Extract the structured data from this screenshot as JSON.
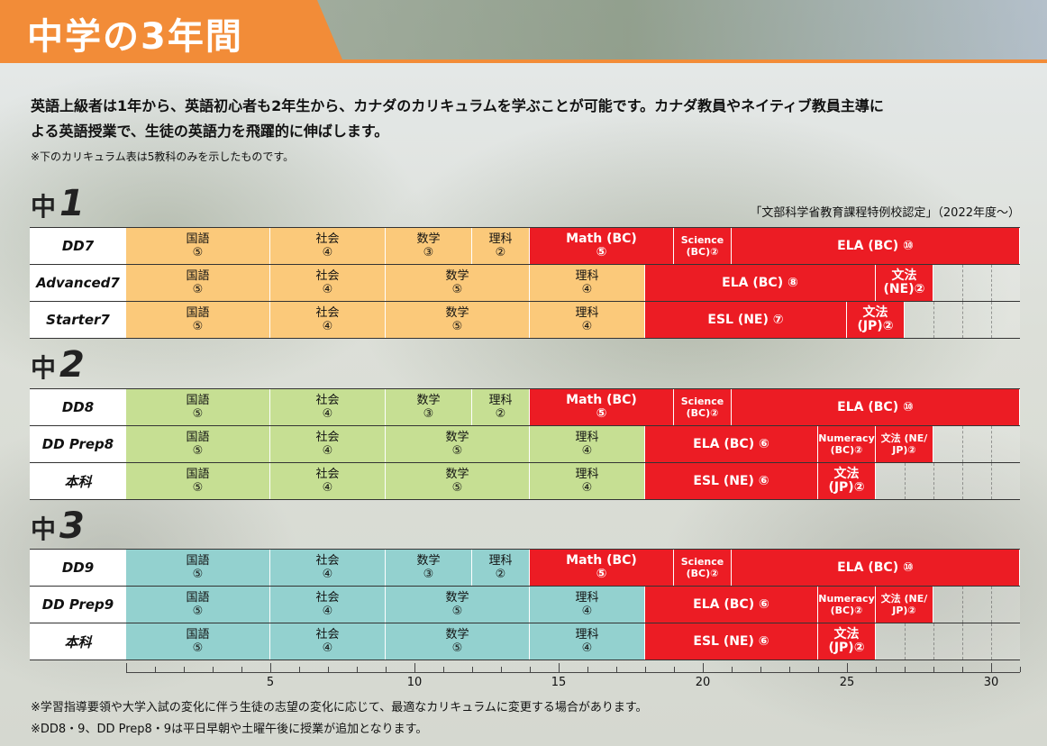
{
  "header": {
    "title": "中学の3年間"
  },
  "intro": {
    "line1": "英語上級者は1年から、英語初心者も2年生から、カナダのカリキュラムを学ぶことが可能です。カナダ教員やネイティブ教員主導に",
    "line2": "よる英語授業で、生徒の英語力を飛躍的に伸ばします。",
    "note": "※下のカリキュラム表は5教科のみを示したものです。"
  },
  "accreditation": "「文部科学省教育課程特例校認定」（2022年度〜）",
  "colors": {
    "orange": "#fbc97a",
    "green": "#c6df93",
    "teal": "#93d1cf",
    "red": "#ec1c24",
    "accent": "#f28c38"
  },
  "grades": [
    {
      "label": "中",
      "number": "1",
      "color": "orange",
      "rows": [
        {
          "name": "DD7",
          "cells": [
            {
              "l1": "国語",
              "l2": "⑤",
              "u": 5,
              "red": false
            },
            {
              "l1": "社会",
              "l2": "④",
              "u": 4,
              "red": false
            },
            {
              "l1": "数学",
              "l2": "③",
              "u": 3,
              "red": false
            },
            {
              "l1": "理科",
              "l2": "②",
              "u": 2,
              "red": false
            },
            {
              "l1": "Math (BC)",
              "l2": "⑤",
              "u": 5,
              "red": true
            },
            {
              "l1": "Science",
              "l2": "(BC)②",
              "u": 2,
              "red": true,
              "small": true
            },
            {
              "l1": "ELA (BC) ⑩",
              "l2": "",
              "u": 10,
              "red": true
            }
          ]
        },
        {
          "name": "Advanced7",
          "cells": [
            {
              "l1": "国語",
              "l2": "⑤",
              "u": 5,
              "red": false
            },
            {
              "l1": "社会",
              "l2": "④",
              "u": 4,
              "red": false
            },
            {
              "l1": "数学",
              "l2": "⑤",
              "u": 5,
              "red": false
            },
            {
              "l1": "理科",
              "l2": "④",
              "u": 4,
              "red": false
            },
            {
              "l1": "ELA (BC) ⑧",
              "l2": "",
              "u": 8,
              "red": true
            },
            {
              "l1": "文法",
              "l2": "(NE)②",
              "u": 2,
              "red": true
            }
          ]
        },
        {
          "name": "Starter7",
          "cells": [
            {
              "l1": "国語",
              "l2": "⑤",
              "u": 5,
              "red": false
            },
            {
              "l1": "社会",
              "l2": "④",
              "u": 4,
              "red": false
            },
            {
              "l1": "数学",
              "l2": "⑤",
              "u": 5,
              "red": false
            },
            {
              "l1": "理科",
              "l2": "④",
              "u": 4,
              "red": false
            },
            {
              "l1": "ESL (NE) ⑦",
              "l2": "",
              "u": 7,
              "red": true
            },
            {
              "l1": "文法",
              "l2": "(JP)②",
              "u": 2,
              "red": true
            }
          ]
        }
      ]
    },
    {
      "label": "中",
      "number": "2",
      "color": "green",
      "rows": [
        {
          "name": "DD8",
          "cells": [
            {
              "l1": "国語",
              "l2": "⑤",
              "u": 5,
              "red": false
            },
            {
              "l1": "社会",
              "l2": "④",
              "u": 4,
              "red": false
            },
            {
              "l1": "数学",
              "l2": "③",
              "u": 3,
              "red": false
            },
            {
              "l1": "理科",
              "l2": "②",
              "u": 2,
              "red": false
            },
            {
              "l1": "Math (BC)",
              "l2": "⑤",
              "u": 5,
              "red": true
            },
            {
              "l1": "Science",
              "l2": "(BC)②",
              "u": 2,
              "red": true,
              "small": true
            },
            {
              "l1": "ELA (BC) ⑩",
              "l2": "",
              "u": 10,
              "red": true
            }
          ]
        },
        {
          "name": "DD Prep8",
          "cells": [
            {
              "l1": "国語",
              "l2": "⑤",
              "u": 5,
              "red": false
            },
            {
              "l1": "社会",
              "l2": "④",
              "u": 4,
              "red": false
            },
            {
              "l1": "数学",
              "l2": "⑤",
              "u": 5,
              "red": false
            },
            {
              "l1": "理科",
              "l2": "④",
              "u": 4,
              "red": false
            },
            {
              "l1": "ELA (BC) ⑥",
              "l2": "",
              "u": 6,
              "red": true
            },
            {
              "l1": "Numeracy",
              "l2": "(BC)②",
              "u": 2,
              "red": true,
              "small": true
            },
            {
              "l1": "文法 (NE/",
              "l2": "JP)②",
              "u": 2,
              "red": true,
              "small": true
            }
          ]
        },
        {
          "name": "本科",
          "cells": [
            {
              "l1": "国語",
              "l2": "⑤",
              "u": 5,
              "red": false
            },
            {
              "l1": "社会",
              "l2": "④",
              "u": 4,
              "red": false
            },
            {
              "l1": "数学",
              "l2": "⑤",
              "u": 5,
              "red": false
            },
            {
              "l1": "理科",
              "l2": "④",
              "u": 4,
              "red": false
            },
            {
              "l1": "ESL (NE) ⑥",
              "l2": "",
              "u": 6,
              "red": true
            },
            {
              "l1": "文法",
              "l2": "(JP)②",
              "u": 2,
              "red": true
            }
          ]
        }
      ]
    },
    {
      "label": "中",
      "number": "3",
      "color": "teal",
      "rows": [
        {
          "name": "DD9",
          "cells": [
            {
              "l1": "国語",
              "l2": "⑤",
              "u": 5,
              "red": false
            },
            {
              "l1": "社会",
              "l2": "④",
              "u": 4,
              "red": false
            },
            {
              "l1": "数学",
              "l2": "③",
              "u": 3,
              "red": false
            },
            {
              "l1": "理科",
              "l2": "②",
              "u": 2,
              "red": false
            },
            {
              "l1": "Math (BC)",
              "l2": "⑤",
              "u": 5,
              "red": true
            },
            {
              "l1": "Science",
              "l2": "(BC)②",
              "u": 2,
              "red": true,
              "small": true
            },
            {
              "l1": "ELA (BC) ⑩",
              "l2": "",
              "u": 10,
              "red": true
            }
          ]
        },
        {
          "name": "DD Prep9",
          "cells": [
            {
              "l1": "国語",
              "l2": "⑤",
              "u": 5,
              "red": false
            },
            {
              "l1": "社会",
              "l2": "④",
              "u": 4,
              "red": false
            },
            {
              "l1": "数学",
              "l2": "⑤",
              "u": 5,
              "red": false
            },
            {
              "l1": "理科",
              "l2": "④",
              "u": 4,
              "red": false
            },
            {
              "l1": "ELA (BC) ⑥",
              "l2": "",
              "u": 6,
              "red": true
            },
            {
              "l1": "Numeracy",
              "l2": "(BC)②",
              "u": 2,
              "red": true,
              "small": true
            },
            {
              "l1": "文法 (NE/",
              "l2": "JP)②",
              "u": 2,
              "red": true,
              "small": true
            }
          ]
        },
        {
          "name": "本科",
          "cells": [
            {
              "l1": "国語",
              "l2": "⑤",
              "u": 5,
              "red": false
            },
            {
              "l1": "社会",
              "l2": "④",
              "u": 4,
              "red": false
            },
            {
              "l1": "数学",
              "l2": "⑤",
              "u": 5,
              "red": false
            },
            {
              "l1": "理科",
              "l2": "④",
              "u": 4,
              "red": false
            },
            {
              "l1": "ESL (NE) ⑥",
              "l2": "",
              "u": 6,
              "red": true
            },
            {
              "l1": "文法",
              "l2": "(JP)②",
              "u": 2,
              "red": true
            }
          ]
        }
      ]
    }
  ],
  "axis": {
    "max": 31,
    "labels": [
      "5",
      "10",
      "15",
      "20",
      "25",
      "30"
    ]
  },
  "footer": {
    "note1": "※学習指導要領や大学入試の変化に伴う生徒の志望の変化に応じて、最適なカリキュラムに変更する場合があります。",
    "note2": "※DD8・9、DD Prep8・9は平日早朝や土曜午後に授業が追加となります。"
  }
}
